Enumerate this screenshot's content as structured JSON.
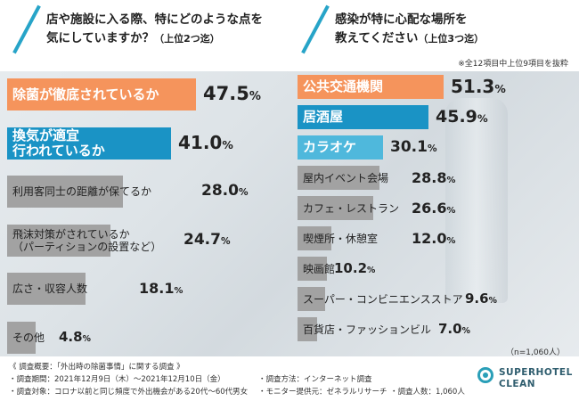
{
  "questions": {
    "left": {
      "line1": "店や施設に入る際、特にどのような点を",
      "line2": "気にしていますか？",
      "suffix": "（上位2つ迄）"
    },
    "right": {
      "line1": "感染が特に心配な場所を",
      "line2": "教えてください",
      "suffix": "（上位3つ迄）"
    }
  },
  "note_top": "※全12項目中上位9項目を抜粋",
  "note_n": "（n=1,060人）",
  "colors": {
    "orange": "#f5945c",
    "blue": "#1a93c5",
    "lightblue": "#4fb8dc",
    "gray": "#a2a2a2",
    "accent": "#27a4c8"
  },
  "chart_data": [
    {
      "type": "bar",
      "orientation": "horizontal",
      "title": "店や施設に入る際、特にどのような点を気にしていますか？（上位2つ迄）",
      "unit": "%",
      "categories": [
        "除菌が徹底されているか",
        "換気が適宜行われているか",
        "利用客同士の距離が保てるか",
        "飛沫対策がされているか（パーティションの設置など）",
        "広さ・収容人数",
        "その他"
      ],
      "label_lines": [
        [
          "除菌が徹底されているか"
        ],
        [
          "換気が適宜",
          "行われているか"
        ],
        [
          "利用客同士の距離が保てるか"
        ],
        [
          "飛沫対策がされているか",
          "（パーティションの設置など）"
        ],
        [
          "広さ・収容人数"
        ],
        [
          "その他"
        ]
      ],
      "values": [
        47.5,
        41.0,
        28.0,
        24.7,
        18.1,
        4.8
      ],
      "value_labels": [
        "47.5",
        "41.0",
        "28.0",
        "24.7",
        "18.1",
        "4.8"
      ]
    },
    {
      "type": "bar",
      "orientation": "horizontal",
      "title": "感染が特に心配な場所を教えてください（上位3つ迄）",
      "unit": "%",
      "categories": [
        "公共交通機関",
        "居酒屋",
        "カラオケ",
        "屋内イベント会場",
        "カフェ・レストラン",
        "喫煙所・休憩室",
        "映画館",
        "スーパー・コンビニエンスストア",
        "百貨店・ファッションビル"
      ],
      "label_lines": [
        [
          "公共交通機関"
        ],
        [
          "居酒屋"
        ],
        [
          "カラオケ"
        ],
        [
          "屋内イベント会場"
        ],
        [
          "カフェ・レストラン"
        ],
        [
          "喫煙所・休憩室"
        ],
        [
          "映画館"
        ],
        [
          "スーパー・コンビニエンスストア"
        ],
        [
          "百貨店・ファッションビル"
        ]
      ],
      "values": [
        51.3,
        45.9,
        30.1,
        28.8,
        26.6,
        12.0,
        10.2,
        9.6,
        7.0
      ],
      "value_labels": [
        "51.3",
        "45.9",
        "30.1",
        "28.8",
        "26.6",
        "12.0",
        "10.2",
        "9.6",
        "7.0"
      ]
    }
  ],
  "footer": {
    "title": "《 調査概要：「外出時の除菌事情」に関する調査 》",
    "period": "・調査期間：2021年12月9日（木）～2021年12月10日（金）",
    "method": "・調査方法：インターネット調査",
    "target": "・調査対象：コロナ以前と同じ頻度で外出機会がある20代～60代男女",
    "provider": "・モニター提供元：ゼネラルリサーチ",
    "count": "・調査人数：1,060人"
  },
  "logo": {
    "line1": "SUPERHOTEL",
    "line2": "CLEAN"
  }
}
